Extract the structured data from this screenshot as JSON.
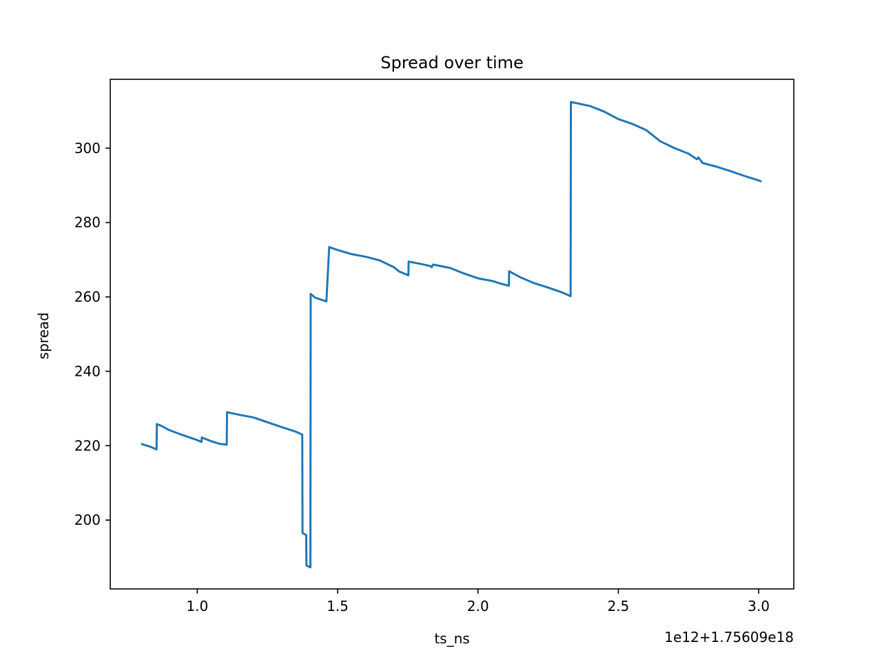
{
  "chart_data": {
    "type": "line",
    "title": "Spread over time",
    "xlabel": "ts_ns",
    "ylabel": "spread",
    "x_offset_label": "1e12+1.75609e18",
    "xlim": [
      0.69,
      3.125
    ],
    "ylim": [
      181.5,
      318.5
    ],
    "xticks": [
      1.0,
      1.5,
      2.0,
      2.5,
      3.0
    ],
    "xtick_labels": [
      "1.0",
      "1.5",
      "2.0",
      "2.5",
      "3.0"
    ],
    "yticks": [
      200,
      220,
      240,
      260,
      280,
      300
    ],
    "ytick_labels": [
      "200",
      "220",
      "240",
      "260",
      "280",
      "300"
    ],
    "grid": false,
    "legend": "none",
    "series_color": "#1f77b4",
    "series": [
      {
        "x": [
          0.8,
          0.83,
          0.855,
          0.856,
          0.87,
          0.9,
          0.95,
          1.0,
          1.015,
          1.016,
          1.05,
          1.08,
          1.105,
          1.106,
          1.15,
          1.2,
          1.25,
          1.3,
          1.35,
          1.374,
          1.375,
          1.388,
          1.389,
          1.403,
          1.404,
          1.42,
          1.46,
          1.47,
          1.5,
          1.55,
          1.6,
          1.65,
          1.7,
          1.72,
          1.752,
          1.753,
          1.8,
          1.83,
          1.835,
          1.84,
          1.9,
          1.95,
          2.0,
          2.05,
          2.08,
          2.11,
          2.111,
          2.15,
          2.2,
          2.25,
          2.3,
          2.33,
          2.331,
          2.4,
          2.45,
          2.5,
          2.55,
          2.58,
          2.6,
          2.65,
          2.7,
          2.75,
          2.78,
          2.785,
          2.8,
          2.85,
          2.9,
          2.95,
          3.0,
          3.01
        ],
        "y": [
          220.5,
          219.8,
          219.0,
          225.8,
          225.4,
          224.2,
          222.8,
          221.5,
          221.0,
          222.2,
          221.2,
          220.5,
          220.3,
          229.0,
          228.3,
          227.6,
          226.3,
          225.0,
          223.8,
          223.0,
          196.5,
          196.0,
          187.8,
          187.3,
          260.8,
          259.8,
          258.8,
          273.4,
          272.6,
          271.5,
          270.8,
          269.8,
          268.0,
          266.8,
          265.8,
          269.5,
          268.8,
          268.3,
          268.0,
          268.7,
          267.8,
          266.3,
          265.0,
          264.3,
          263.6,
          263.0,
          266.9,
          265.3,
          263.7,
          262.5,
          261.2,
          260.2,
          312.4,
          311.3,
          309.8,
          307.8,
          306.5,
          305.5,
          304.8,
          301.8,
          300.0,
          298.5,
          297.0,
          297.5,
          296.0,
          295.0,
          293.8,
          292.5,
          291.3,
          291.0
        ]
      }
    ]
  }
}
